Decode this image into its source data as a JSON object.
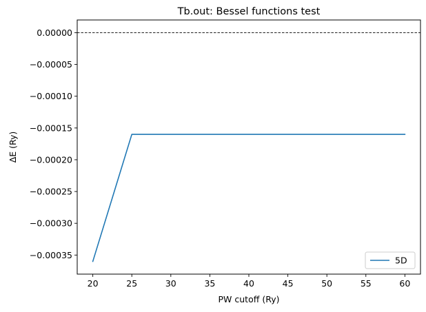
{
  "chart_data": {
    "type": "line",
    "title": "Tb.out: Bessel functions test",
    "xlabel": "PW cutoff (Ry)",
    "ylabel": "ΔE (Ry)",
    "xlim": [
      18,
      62
    ],
    "ylim": [
      -0.00038,
      2e-05
    ],
    "xticks": [
      20,
      25,
      30,
      35,
      40,
      45,
      50,
      55,
      60
    ],
    "xtick_labels": [
      "20",
      "25",
      "30",
      "35",
      "40",
      "45",
      "50",
      "55",
      "60"
    ],
    "yticks": [
      0,
      -5e-05,
      -0.0001,
      -0.00015,
      -0.0002,
      -0.00025,
      -0.0003,
      -0.00035
    ],
    "ytick_labels": [
      "0.00000",
      "−0.00005",
      "−0.00010",
      "−0.00015",
      "−0.00020",
      "−0.00025",
      "−0.00030",
      "−0.00035"
    ],
    "grid": false,
    "legend_position": "lower-right",
    "reference_line": {
      "y": 0,
      "style": "dashed",
      "color": "#000000"
    },
    "series": [
      {
        "name": "5D",
        "color": "#1f77b4",
        "x": [
          20,
          25,
          30,
          35,
          40,
          45,
          50,
          55,
          60
        ],
        "y": [
          -0.00036,
          -0.00016,
          -0.00016,
          -0.00016,
          -0.00016,
          -0.00016,
          -0.00016,
          -0.00016,
          -0.00016
        ]
      }
    ]
  }
}
